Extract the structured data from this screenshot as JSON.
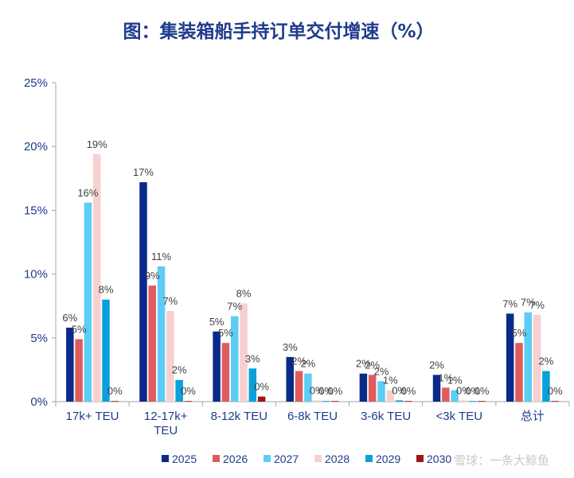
{
  "chart_data": {
    "type": "bar",
    "title": "图：集装箱船手持订单交付增速（%）",
    "xlabel": "",
    "ylabel": "",
    "ylim": [
      0,
      25
    ],
    "yticks": [
      "0%",
      "5%",
      "10%",
      "15%",
      "20%",
      "25%"
    ],
    "ytick_values": [
      0,
      5,
      10,
      15,
      20,
      25
    ],
    "grid": false,
    "legend_position": "bottom",
    "categories": [
      [
        "17k+ TEU"
      ],
      [
        "12-17k+",
        "TEU"
      ],
      [
        "8-12k TEU"
      ],
      [
        "6-8k TEU"
      ],
      [
        "3-6k TEU"
      ],
      [
        "<3k TEU"
      ],
      [
        "总计"
      ]
    ],
    "series": [
      {
        "name": "2025",
        "color": "#0a2a8a",
        "values": [
          5.8,
          17.2,
          5.5,
          3.5,
          2.2,
          2.1,
          6.9
        ],
        "labels": [
          "6%",
          "17%",
          "5%",
          "3%",
          "2%",
          "2%",
          "7%"
        ]
      },
      {
        "name": "2026",
        "color": "#e05c5c",
        "values": [
          4.9,
          9.1,
          4.6,
          2.4,
          2.1,
          1.1,
          4.6
        ],
        "labels": [
          "5%",
          "9%",
          "5%",
          "2%",
          "2%",
          "1%",
          "5%"
        ]
      },
      {
        "name": "2027",
        "color": "#5ccdf5",
        "values": [
          15.6,
          10.6,
          6.7,
          2.2,
          1.6,
          0.9,
          7.0
        ],
        "labels": [
          "16%",
          "11%",
          "7%",
          "2%",
          "2%",
          "1%",
          "7%"
        ]
      },
      {
        "name": "2028",
        "color": "#f7d0d0",
        "values": [
          19.4,
          7.1,
          7.7,
          0.1,
          0.9,
          0.1,
          6.8
        ],
        "labels": [
          "19%",
          "7%",
          "8%",
          "0%",
          "1%",
          "0%",
          "7%"
        ]
      },
      {
        "name": "2029",
        "color": "#0aa0dc",
        "values": [
          8.0,
          1.7,
          2.6,
          0.05,
          0.1,
          0.05,
          2.4
        ],
        "labels": [
          "8%",
          "2%",
          "3%",
          "0%",
          "0%",
          "0%",
          "2%"
        ]
      },
      {
        "name": "2030",
        "color": "#a31515",
        "values": [
          0.05,
          0.05,
          0.4,
          0.05,
          0.05,
          0.05,
          0.05
        ],
        "labels": [
          "0%",
          "0%",
          "0%",
          "0%",
          "0%",
          "0%",
          "0%"
        ]
      }
    ]
  },
  "watermark": "雪球：一条大鲸鱼"
}
